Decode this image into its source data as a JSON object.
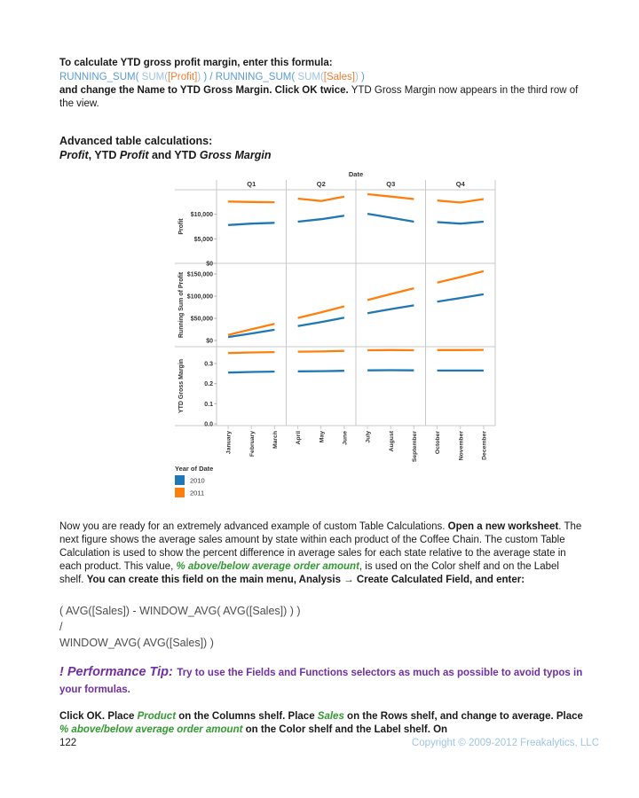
{
  "para1": {
    "line1": [
      {
        "t": "To calculate YTD gross profit margin, enter this formula:",
        "s": "b"
      }
    ],
    "formula": [
      {
        "t": "RUNNING_SUM(",
        "s": "blue"
      },
      {
        "t": " SUM(",
        "s": "bluel"
      },
      {
        "t": "[Profit]",
        "s": "orange"
      },
      {
        "t": ")",
        "s": "bluel"
      },
      {
        "t": " ) / ",
        "s": "blue"
      },
      {
        "t": "RUNNING_SUM(",
        "s": "blue"
      },
      {
        "t": " SUM(",
        "s": "bluel"
      },
      {
        "t": "[Sales]",
        "s": "orange"
      },
      {
        "t": ")",
        "s": "bluel"
      },
      {
        "t": " )",
        "s": "blue"
      }
    ],
    "rest": [
      {
        "t": "and change the Name to YTD Gross Margin. Click OK twice.",
        "s": "b"
      },
      {
        "t": " YTD Gross Margin now appears in the third row of the view.",
        "s": "r"
      }
    ]
  },
  "heading": {
    "line1": [
      {
        "t": "Advanced table calculations:",
        "s": "b"
      }
    ],
    "line2": [
      {
        "t": "Profit",
        "s": "bi"
      },
      {
        "t": ", YTD ",
        "s": "b"
      },
      {
        "t": "Profit",
        "s": "bi"
      },
      {
        "t": " and YTD ",
        "s": "b"
      },
      {
        "t": "Gross Margin",
        "s": "bi"
      }
    ]
  },
  "para2": {
    "segments": [
      {
        "t": "Now you are ready for an extremely advanced example of custom Table Calculations. ",
        "s": "r"
      },
      {
        "t": "Open a new worksheet",
        "s": "b"
      },
      {
        "t": ". The next figure shows the average sales amount by state within each product of the Coffee Chain. The custom Table Calculation is used to show the percent difference in average sales for each state relative to the average state in each product. This value, ",
        "s": "r"
      },
      {
        "t": "% above/below average order amount",
        "s": "green"
      },
      {
        "t": ", is used on the Color shelf and on the Label shelf. ",
        "s": "r"
      },
      {
        "t": "You can create this field on the main menu, Analysis → Create Calculated Field, and enter:",
        "s": "b"
      }
    ]
  },
  "formula_block": {
    "lines": [
      [
        {
          "t": "( AVG([Sales]) - WINDOW_AVG( AVG([Sales]) ) )",
          "s": "gray"
        }
      ],
      [
        {
          "t": "/",
          "s": "gray"
        }
      ],
      [
        {
          "t": "WINDOW_AVG( AVG([Sales]) )",
          "s": "gray"
        }
      ]
    ]
  },
  "tip": {
    "label": "! Performance Tip:",
    "text": "Try to use the Fields and Functions selectors as much as possible to avoid typos in your formulas."
  },
  "para3": {
    "segments": [
      {
        "t": "Click OK. Place ",
        "s": "b"
      },
      {
        "t": "Product",
        "s": "green"
      },
      {
        "t": " on the Columns shelf. Place ",
        "s": "b"
      },
      {
        "t": "Sales",
        "s": "green"
      },
      {
        "t": " on the Rows shelf, and change to average. Place ",
        "s": "b"
      },
      {
        "t": "% above/below average order amount",
        "s": "green"
      },
      {
        "t": " on the Color shelf and the Label shelf. On",
        "s": "b"
      }
    ]
  },
  "footer": {
    "page_number": "122",
    "copyright": "Copyright © 2009-2012 Freakalytics, LLC"
  },
  "chart_data": {
    "type": "line",
    "facet_title": "Date",
    "quarters": [
      "Q1",
      "Q2",
      "Q3",
      "Q4"
    ],
    "months": [
      "January",
      "February",
      "March",
      "April",
      "May",
      "June",
      "July",
      "August",
      "September",
      "October",
      "November",
      "December"
    ],
    "legend": {
      "title": "Year of Date",
      "entries": [
        {
          "label": "2010",
          "color": "#1f77b4"
        },
        {
          "label": "2011",
          "color": "#ff7f0e"
        }
      ]
    },
    "panels": [
      {
        "ylabel": "Profit",
        "ticks": [
          {
            "label": "$10,000",
            "value": 10000
          },
          {
            "label": "$5,000",
            "value": 5000
          },
          {
            "label": "$0",
            "value": 0
          }
        ],
        "ylim": [
          0,
          15000
        ],
        "series": [
          {
            "name": "2010",
            "color": "#1f77b4",
            "values": [
              7800,
              8100,
              8250,
              8500,
              9000,
              9700,
              10100,
              9300,
              8500,
              8400,
              8100,
              8500
            ]
          },
          {
            "name": "2011",
            "color": "#ff7f0e",
            "values": [
              12600,
              12500,
              12450,
              13200,
              12700,
              13600,
              14100,
              13600,
              13100,
              12800,
              12400,
              13100
            ]
          }
        ]
      },
      {
        "ylabel": "Running Sum of Profit",
        "ticks": [
          {
            "label": "$150,000",
            "value": 150000
          },
          {
            "label": "$100,000",
            "value": 100000
          },
          {
            "label": "$50,000",
            "value": 50000
          },
          {
            "label": "$0",
            "value": 0
          }
        ],
        "ylim": [
          0,
          174000
        ],
        "series": [
          {
            "name": "2010",
            "color": "#1f77b4",
            "values": [
              7800,
              15900,
              24150,
              32650,
              41650,
              51350,
              61450,
              70750,
              79250,
              87650,
              95750,
              104250
            ]
          },
          {
            "name": "2011",
            "color": "#ff7f0e",
            "values": [
              12600,
              25100,
              37550,
              50750,
              63450,
              77050,
              91150,
              104750,
              117850,
              130650,
              143050,
              156150
            ]
          }
        ]
      },
      {
        "ylabel": "YTD Gross Margin",
        "ticks": [
          {
            "label": "0.3",
            "value": 0.3
          },
          {
            "label": "0.2",
            "value": 0.2
          },
          {
            "label": "0.1",
            "value": 0.1
          },
          {
            "label": "0.0",
            "value": 0
          }
        ],
        "ylim": [
          0,
          0.383
        ],
        "series": [
          {
            "name": "2010",
            "color": "#1f77b4",
            "values": [
              0.255,
              0.258,
              0.26,
              0.261,
              0.262,
              0.264,
              0.266,
              0.267,
              0.266,
              0.265,
              0.265,
              0.265
            ]
          },
          {
            "name": "2011",
            "color": "#ff7f0e",
            "values": [
              0.352,
              0.355,
              0.357,
              0.359,
              0.36,
              0.363,
              0.366,
              0.367,
              0.366,
              0.367,
              0.367,
              0.368
            ]
          }
        ]
      }
    ]
  }
}
